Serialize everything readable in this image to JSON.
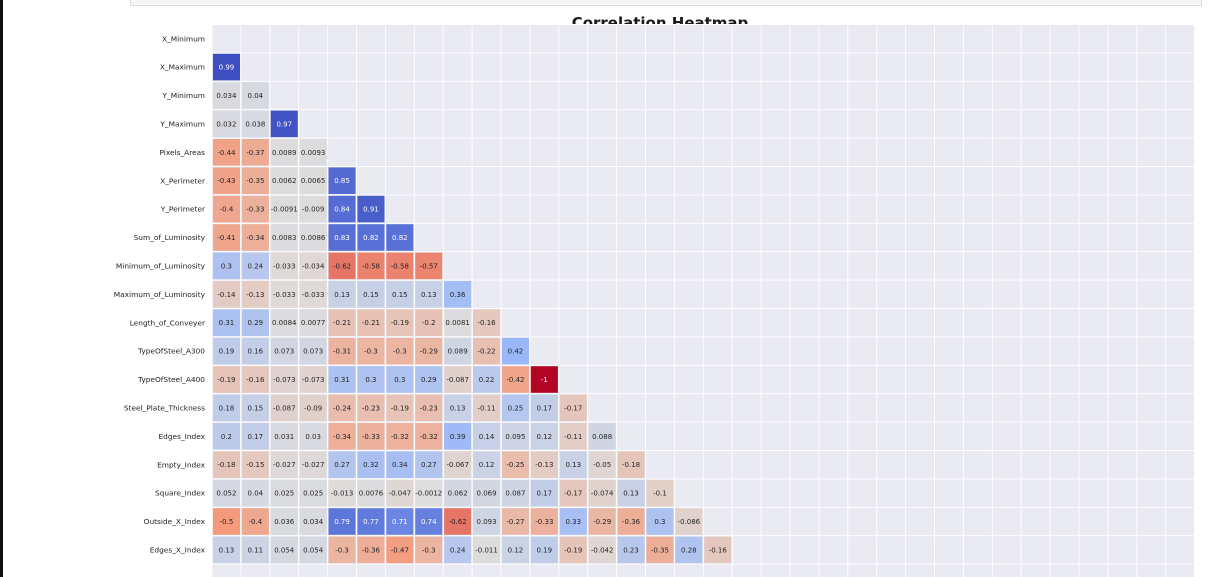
{
  "chart_data": {
    "type": "heatmap",
    "title": "Correlation Heatmap",
    "mask": "upper-triangle",
    "colormap": "coolwarm (blue = high, red = low)",
    "grid": true,
    "colors": {
      "blue_end": "#3b4cc0",
      "mid": "#dddddd",
      "red_end": "#b40426",
      "background": "#eaeaf2",
      "grid": "#ffffff"
    },
    "rows": [
      {
        "label": "X_Minimum",
        "values": []
      },
      {
        "label": "X_Maximum",
        "values": [
          "0.99"
        ]
      },
      {
        "label": "Y_Minimum",
        "values": [
          "0.034",
          "0.04"
        ]
      },
      {
        "label": "Y_Maximum",
        "values": [
          "0.032",
          "0.038",
          "0.97"
        ]
      },
      {
        "label": "Pixels_Areas",
        "values": [
          "-0.44",
          "-0.37",
          "0.0089",
          "0.0093"
        ]
      },
      {
        "label": "X_Perimeter",
        "values": [
          "-0.43",
          "-0.35",
          "0.0062",
          "0.0065",
          "0.85"
        ]
      },
      {
        "label": "Y_Perimeter",
        "values": [
          "-0.4",
          "-0.33",
          "-0.0091",
          "-0.009",
          "0.84",
          "0.91"
        ]
      },
      {
        "label": "Sum_of_Luminosity",
        "values": [
          "-0.41",
          "-0.34",
          "0.0083",
          "0.0086",
          "0.83",
          "0.82",
          "0.82"
        ]
      },
      {
        "label": "Minimum_of_Luminosity",
        "values": [
          "0.3",
          "0.24",
          "-0.033",
          "-0.034",
          "-0.62",
          "-0.58",
          "-0.58",
          "-0.57"
        ]
      },
      {
        "label": "Maximum_of_Luminosity",
        "values": [
          "-0.14",
          "-0.13",
          "-0.033",
          "-0.033",
          "0.13",
          "0.15",
          "0.15",
          "0.13",
          "0.36"
        ]
      },
      {
        "label": "Length_of_Conveyer",
        "values": [
          "0.31",
          "0.29",
          "0.0084",
          "0.0077",
          "-0.21",
          "-0.21",
          "-0.19",
          "-0.2",
          "0.0081",
          "-0.16"
        ]
      },
      {
        "label": "TypeOfSteel_A300",
        "values": [
          "0.19",
          "0.16",
          "0.073",
          "0.073",
          "-0.31",
          "-0.3",
          "-0.3",
          "-0.29",
          "0.089",
          "-0.22",
          "0.42"
        ]
      },
      {
        "label": "TypeOfSteel_A400",
        "values": [
          "-0.19",
          "-0.16",
          "-0.073",
          "-0.073",
          "0.31",
          "0.3",
          "0.3",
          "0.29",
          "-0.087",
          "0.22",
          "-0.42",
          "-1"
        ]
      },
      {
        "label": "Steel_Plate_Thickness",
        "values": [
          "0.18",
          "0.15",
          "-0.087",
          "-0.09",
          "-0.24",
          "-0.23",
          "-0.19",
          "-0.23",
          "0.13",
          "-0.11",
          "0.25",
          "0.17",
          "-0.17"
        ]
      },
      {
        "label": "Edges_Index",
        "values": [
          "0.2",
          "0.17",
          "0.031",
          "0.03",
          "-0.34",
          "-0.33",
          "-0.32",
          "-0.32",
          "0.39",
          "0.14",
          "0.095",
          "0.12",
          "-0.11",
          "0.088"
        ]
      },
      {
        "label": "Empty_Index",
        "values": [
          "-0.18",
          "-0.15",
          "-0.027",
          "-0.027",
          "0.27",
          "0.32",
          "0.34",
          "0.27",
          "-0.067",
          "0.12",
          "-0.25",
          "-0.13",
          "0.13",
          "-0.05",
          "-0.18"
        ]
      },
      {
        "label": "Square_Index",
        "values": [
          "0.052",
          "0.04",
          "0.025",
          "0.025",
          "-0.013",
          "0.0076",
          "-0.047",
          "-0.0012",
          "0.062",
          "0.069",
          "0.087",
          "0.17",
          "-0.17",
          "-0.074",
          "0.13",
          "-0.1"
        ]
      },
      {
        "label": "Outside_X_Index",
        "values": [
          "-0.5",
          "-0.4",
          "0.036",
          "0.034",
          "0.79",
          "0.77",
          "0.71",
          "0.74",
          "-0.62",
          "0.093",
          "-0.27",
          "-0.33",
          "0.33",
          "-0.29",
          "-0.36",
          "0.3",
          "-0.086"
        ]
      },
      {
        "label": "Edges_X_Index",
        "values": [
          "0.13",
          "0.11",
          "0.054",
          "0.054",
          "-0.3",
          "-0.36",
          "-0.47",
          "-0.3",
          "0.24",
          "-0.011",
          "0.12",
          "0.19",
          "-0.19",
          "-0.042",
          "0.23",
          "-0.35",
          "0.28",
          "-0.16"
        ]
      }
    ]
  }
}
